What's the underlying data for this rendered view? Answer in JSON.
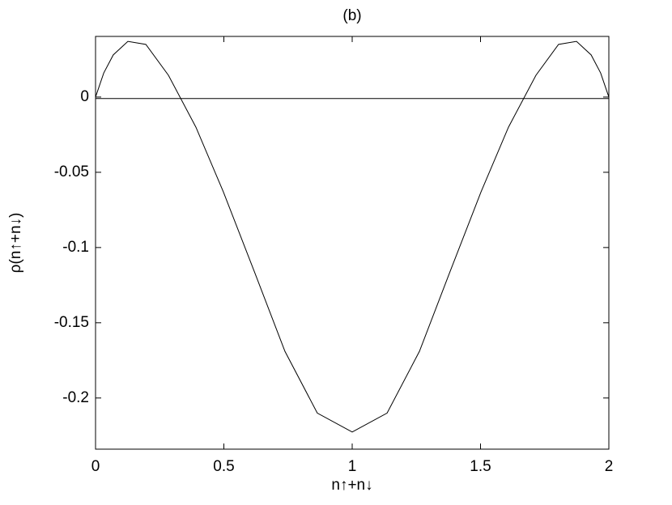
{
  "chart_data": {
    "type": "line",
    "title": "(b)",
    "x_label": "n↑+n↓",
    "y_label": "ρ(n↑+n↓)",
    "series": [
      {
        "color": "#000000",
        "x": [
          0,
          0.032,
          0.069,
          0.126,
          0.196,
          0.284,
          0.391,
          0.498,
          0.621,
          0.738,
          0.864,
          1,
          1.136,
          1.262,
          1.379,
          1.502,
          1.609,
          1.716,
          1.804,
          1.874,
          1.931,
          1.968,
          2
        ],
        "values": [
          0,
          0.016,
          0.028,
          0.037,
          0.035,
          0.0145,
          -0.02,
          -0.063,
          -0.117,
          -0.169,
          -0.21,
          -0.2226,
          -0.21,
          -0.169,
          -0.117,
          -0.063,
          -0.02,
          0.0145,
          0.035,
          0.037,
          0.028,
          0.016,
          0
        ]
      },
      {
        "color": "#000000",
        "x": [
          0,
          2
        ],
        "values": [
          -0.001,
          -0.001
        ]
      }
    ],
    "xlim": [
      0,
      2
    ],
    "ylim": [
      -0.234,
      0.0403
    ],
    "xticks": [
      0,
      0.5,
      1,
      1.5,
      2
    ],
    "yticks": [
      -0.2,
      -0.15,
      -0.1,
      -0.05,
      0
    ]
  }
}
